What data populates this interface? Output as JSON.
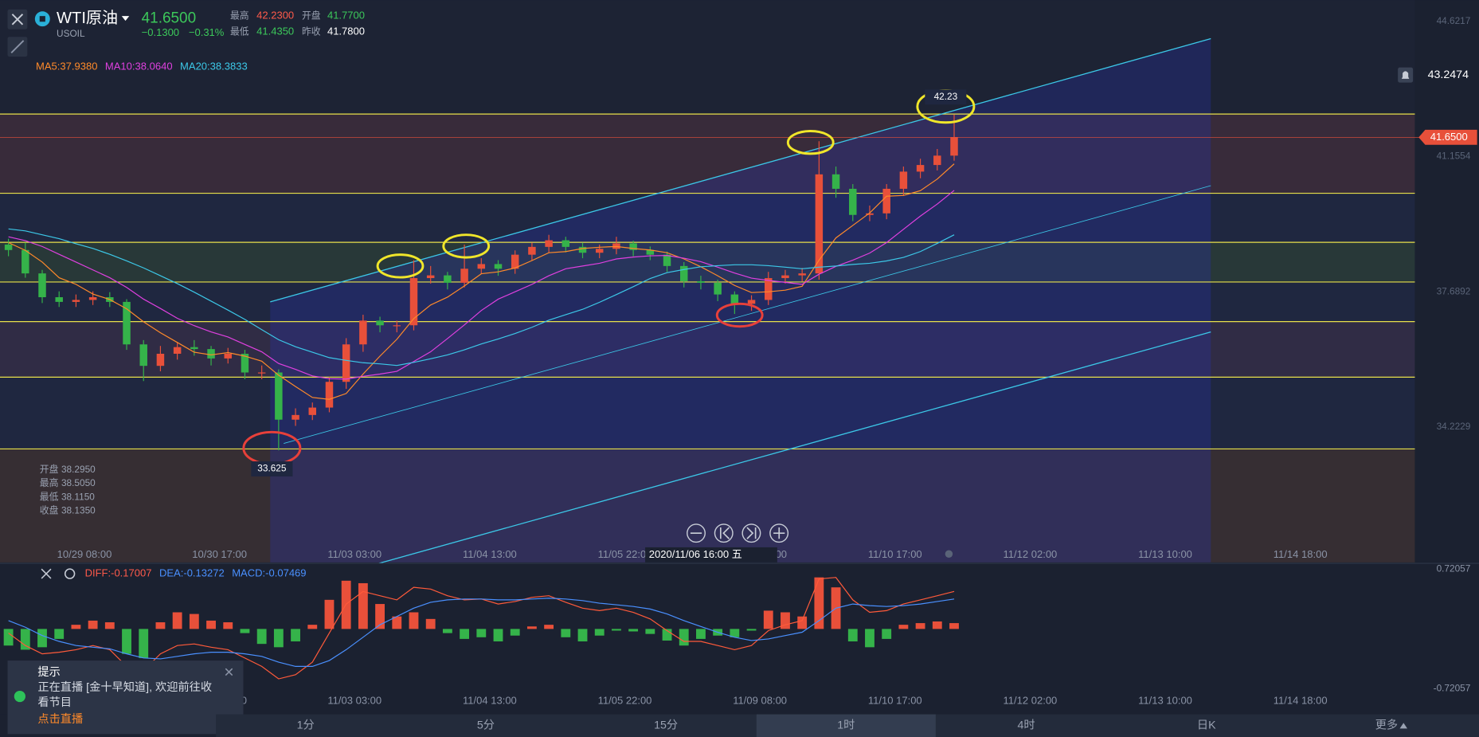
{
  "header": {
    "symbol": "WTI原油",
    "code": "USOIL",
    "price": "41.6500",
    "change": "−0.1300",
    "change_pct": "−0.31%",
    "stats": [
      {
        "label": "最高",
        "value": "42.2300"
      },
      {
        "label": "开盘",
        "value": "41.7700"
      },
      {
        "label": "最低",
        "value": "41.4350"
      },
      {
        "label": "昨收",
        "value": "41.7800"
      }
    ]
  },
  "chart_data": {
    "type": "candlestick",
    "xlim": [
      0,
      83
    ],
    "ylim": [
      30.75,
      45.17
    ],
    "yticks": [
      34.2229,
      37.6892,
      41.1554,
      44.6217
    ],
    "xticks": [
      {
        "value": 5,
        "label": "10/29 08:00"
      },
      {
        "value": 13,
        "label": "10/30 17:00"
      },
      {
        "value": 21,
        "label": "11/03 03:00"
      },
      {
        "value": 29,
        "label": "11/04 13:00"
      },
      {
        "value": 37,
        "label": "11/05 22:00"
      },
      {
        "value": 45,
        "label": "11/09 08:00"
      },
      {
        "value": 53,
        "label": "11/10 17:00"
      },
      {
        "value": 61,
        "label": "11/12 02:00"
      },
      {
        "value": 69,
        "label": "11/13 10:00"
      },
      {
        "value": 77,
        "label": "11/14 18:00"
      }
    ],
    "up_color": "#e8503a",
    "down_color": "#35b34a",
    "open": [
      38.9,
      38.76,
      38.16,
      37.55,
      37.43,
      37.48,
      37.55,
      37.43,
      36.34,
      35.79,
      36.1,
      36.27,
      36.22,
      35.98,
      36.1,
      35.62,
      35.62,
      34.41,
      34.53,
      34.72,
      35.38,
      36.34,
      36.95,
      36.83,
      36.83,
      38.04,
      38.11,
      37.92,
      38.28,
      38.4,
      38.28,
      38.64,
      38.84,
      39.01,
      38.84,
      38.69,
      38.79,
      38.93,
      38.76,
      38.64,
      38.35,
      37.96,
      37.92,
      37.62,
      37.38,
      37.48,
      38.04,
      38.11,
      38.16,
      40.7,
      40.33,
      39.66,
      39.7,
      40.33,
      40.77,
      40.94,
      41.18
    ],
    "high": [
      39.05,
      38.95,
      38.25,
      37.7,
      37.62,
      37.7,
      37.68,
      37.5,
      36.45,
      36.3,
      36.4,
      36.45,
      36.3,
      36.25,
      36.2,
      35.8,
      35.7,
      34.7,
      34.85,
      35.5,
      36.5,
      37.1,
      37.05,
      36.95,
      38.5,
      38.35,
      38.2,
      38.9,
      38.55,
      38.5,
      38.75,
      38.95,
      39.15,
      39.1,
      38.95,
      38.9,
      39.1,
      39.0,
      38.85,
      38.72,
      38.45,
      38.1,
      38.0,
      37.7,
      37.6,
      38.2,
      38.25,
      38.3,
      41.55,
      40.9,
      40.45,
      39.9,
      40.45,
      40.9,
      41.1,
      41.35,
      42.23
    ],
    "low": [
      38.6,
      38.05,
      37.4,
      37.3,
      37.3,
      37.35,
      37.3,
      36.2,
      35.4,
      35.65,
      35.95,
      36.05,
      35.8,
      35.85,
      35.45,
      35.45,
      33.625,
      34.25,
      34.4,
      34.6,
      35.2,
      36.15,
      36.65,
      36.65,
      36.7,
      37.9,
      37.75,
      37.8,
      38.15,
      38.1,
      38.15,
      38.5,
      38.7,
      38.7,
      38.55,
      38.55,
      38.65,
      38.6,
      38.5,
      38.2,
      37.8,
      37.75,
      37.45,
      37.12,
      37.2,
      37.35,
      37.9,
      37.95,
      38.0,
      40.1,
      39.5,
      39.5,
      39.55,
      40.15,
      40.6,
      40.8,
      41.05
    ],
    "close": [
      38.76,
      38.16,
      37.55,
      37.43,
      37.48,
      37.55,
      37.43,
      36.34,
      35.79,
      36.1,
      36.27,
      36.22,
      35.98,
      36.1,
      35.62,
      35.62,
      34.41,
      34.53,
      34.72,
      35.38,
      36.34,
      36.95,
      36.83,
      36.83,
      38.04,
      38.11,
      37.92,
      38.28,
      38.4,
      38.28,
      38.64,
      38.84,
      39.01,
      38.84,
      38.69,
      38.79,
      38.93,
      38.76,
      38.64,
      38.35,
      37.96,
      37.92,
      37.62,
      37.38,
      37.48,
      38.04,
      38.11,
      38.16,
      40.7,
      40.33,
      39.66,
      39.7,
      40.33,
      40.77,
      40.94,
      41.18,
      41.65
    ],
    "ma_series": [
      {
        "name": "MA5:37.9380",
        "color": "#ff8a2a",
        "values": [
          38.95,
          38.75,
          38.45,
          38.05,
          37.88,
          37.63,
          37.49,
          37.25,
          36.92,
          36.64,
          36.39,
          36.14,
          36.07,
          36.13,
          36.04,
          35.91,
          35.55,
          35.26,
          34.98,
          34.93,
          35.08,
          35.58,
          36.04,
          36.47,
          37.0,
          37.35,
          37.55,
          37.84,
          38.15,
          38.2,
          38.3,
          38.49,
          38.69,
          38.72,
          38.8,
          38.83,
          38.85,
          38.8,
          38.76,
          38.69,
          38.53,
          38.33,
          38.1,
          37.85,
          37.67,
          37.69,
          37.73,
          37.83,
          38.5,
          39.07,
          39.39,
          39.71,
          40.14,
          40.16,
          40.28,
          40.58,
          40.97
        ]
      },
      {
        "name": "MA10:38.0640",
        "color": "#e040e0",
        "values": [
          39.1,
          39.0,
          38.85,
          38.65,
          38.45,
          38.25,
          38.05,
          37.8,
          37.5,
          37.26,
          37.01,
          36.82,
          36.66,
          36.53,
          36.34,
          36.15,
          35.85,
          35.7,
          35.53,
          35.46,
          35.45,
          35.52,
          35.58,
          35.65,
          35.9,
          36.15,
          36.49,
          36.84,
          37.21,
          37.5,
          37.69,
          37.88,
          38.1,
          38.28,
          38.35,
          38.42,
          38.53,
          38.58,
          38.61,
          38.62,
          38.55,
          38.46,
          38.32,
          38.17,
          38.04,
          37.98,
          37.93,
          37.88,
          38.14,
          38.34,
          38.5,
          38.68,
          38.95,
          39.29,
          39.63,
          39.94,
          40.29
        ]
      },
      {
        "name": "MA20:38.3833",
        "color": "#3cc8e8",
        "values": [
          39.3,
          39.25,
          39.15,
          39.05,
          38.92,
          38.8,
          38.65,
          38.48,
          38.3,
          38.1,
          37.9,
          37.68,
          37.45,
          37.22,
          36.98,
          36.72,
          36.46,
          36.28,
          36.14,
          36.0,
          35.93,
          35.87,
          35.84,
          35.8,
          35.88,
          35.97,
          36.07,
          36.2,
          36.35,
          36.48,
          36.62,
          36.78,
          36.96,
          37.1,
          37.24,
          37.42,
          37.62,
          37.82,
          38.03,
          38.18,
          38.26,
          38.33,
          38.36,
          38.38,
          38.38,
          38.36,
          38.32,
          38.28,
          38.32,
          38.35,
          38.39,
          38.42,
          38.48,
          38.57,
          38.72,
          38.93,
          39.15
        ]
      }
    ],
    "levels": [
      42.246,
      40.215,
      38.957,
      37.94,
      36.925,
      35.5,
      33.66
    ],
    "level_color": "#e8e04a",
    "channel": [
      {
        "points": [
          [
            16.0,
            37.43
          ],
          [
            71.7,
            44.18
          ]
        ]
      },
      {
        "points": [
          [
            16.8,
            33.8
          ],
          [
            71.7,
            40.41
          ]
        ]
      },
      {
        "points": [
          [
            22.3,
            30.71
          ],
          [
            71.7,
            36.66
          ]
        ]
      }
    ],
    "channel_color": "#3cc8e8",
    "last_price": {
      "value": 41.65,
      "label": "41.6500"
    },
    "alert_price": 43.2474,
    "annotations": [
      {
        "x": 56.0,
        "y": 42.44,
        "color": "#f0e62a",
        "label": "42.23"
      },
      {
        "x": 48.0,
        "y": 41.52,
        "color": "#f0e62a"
      },
      {
        "x": 23.7,
        "y": 38.35,
        "color": "#f0e62a"
      },
      {
        "x": 27.6,
        "y": 38.86,
        "color": "#f0e62a"
      },
      {
        "x": 16.1,
        "y": 33.68,
        "color": "#e8403a",
        "label": "33.625"
      },
      {
        "x": 43.8,
        "y": 37.09,
        "color": "#e8403a"
      }
    ],
    "crosshair": {
      "label": "2020/11/06 16:00 五",
      "ohlc": [
        {
          "label": "开盘",
          "value": "38.2950"
        },
        {
          "label": "最高",
          "value": "38.5050"
        },
        {
          "label": "最低",
          "value": "38.1150"
        },
        {
          "label": "收盘",
          "value": "38.1350"
        }
      ]
    },
    "macd": {
      "labels": [
        {
          "text": "DIFF:-0.17007",
          "color": "#ff5a4a"
        },
        {
          "text": "DEA:-0.13272",
          "color": "#4a90ff"
        },
        {
          "text": "MACD:-0.07469",
          "color": "#4a90ff"
        }
      ],
      "ylim": [
        -0.72057,
        0.72057
      ],
      "yticks": [
        0.72057,
        -0.72057
      ],
      "hist": [
        -0.2,
        -0.25,
        -0.22,
        -0.12,
        0.05,
        0.1,
        0.08,
        -0.3,
        -0.35,
        0.08,
        0.2,
        0.18,
        0.1,
        0.08,
        -0.05,
        -0.18,
        -0.22,
        -0.15,
        0.05,
        0.35,
        0.58,
        0.55,
        0.3,
        0.15,
        0.2,
        0.12,
        -0.05,
        -0.12,
        -0.1,
        -0.15,
        -0.08,
        0.03,
        0.05,
        -0.1,
        -0.15,
        -0.08,
        -0.02,
        -0.03,
        -0.06,
        -0.14,
        -0.2,
        -0.12,
        -0.08,
        -0.1,
        -0.02,
        0.22,
        0.2,
        0.15,
        0.62,
        0.5,
        -0.15,
        -0.22,
        -0.12,
        0.05,
        0.07,
        0.09,
        0.07
      ],
      "diff": [
        -0.05,
        -0.2,
        -0.3,
        -0.28,
        -0.25,
        -0.2,
        -0.25,
        -0.45,
        -0.5,
        -0.3,
        -0.2,
        -0.18,
        -0.22,
        -0.25,
        -0.35,
        -0.45,
        -0.6,
        -0.55,
        -0.4,
        -0.05,
        0.3,
        0.45,
        0.4,
        0.35,
        0.5,
        0.48,
        0.4,
        0.35,
        0.36,
        0.3,
        0.33,
        0.38,
        0.4,
        0.32,
        0.25,
        0.22,
        0.25,
        0.2,
        0.12,
        -0.02,
        -0.15,
        -0.15,
        -0.2,
        -0.25,
        -0.2,
        -0.02,
        0.05,
        0.1,
        0.6,
        0.62,
        0.35,
        0.2,
        0.22,
        0.3,
        0.35,
        0.4,
        0.45
      ],
      "dea": [
        0.1,
        0.02,
        -0.08,
        -0.15,
        -0.2,
        -0.22,
        -0.24,
        -0.3,
        -0.35,
        -0.36,
        -0.33,
        -0.3,
        -0.28,
        -0.28,
        -0.3,
        -0.33,
        -0.4,
        -0.45,
        -0.45,
        -0.38,
        -0.25,
        -0.1,
        0.05,
        0.15,
        0.25,
        0.32,
        0.35,
        0.36,
        0.36,
        0.35,
        0.35,
        0.36,
        0.37,
        0.36,
        0.34,
        0.31,
        0.29,
        0.27,
        0.24,
        0.18,
        0.1,
        0.03,
        -0.04,
        -0.1,
        -0.14,
        -0.12,
        -0.08,
        -0.04,
        0.1,
        0.25,
        0.3,
        0.28,
        0.27,
        0.28,
        0.3,
        0.33,
        0.36
      ],
      "diff_color": "#ff5a3a",
      "dea_color": "#4a90ff"
    }
  },
  "toast": {
    "title": "提示",
    "body": "正在直播 [金十早知道], 欢迎前往收看节目",
    "action": "点击直播"
  },
  "tabs": [
    "1分",
    "5分",
    "15分",
    "1时",
    "4时",
    "日K",
    "更多"
  ]
}
